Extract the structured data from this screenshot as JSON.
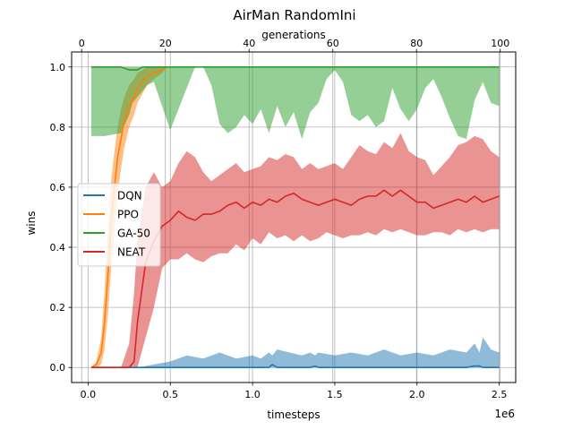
{
  "chart_data": {
    "type": "line",
    "title": "AirMan RandomIni",
    "xlabel": "timesteps",
    "x_scale_label": "1e6",
    "ylabel": "wins",
    "top_xlabel": "generations",
    "xlim": [
      -0.1,
      2.6
    ],
    "ylim": [
      -0.05,
      1.05
    ],
    "top_xlim": [
      -2.4,
      103.7
    ],
    "x_ticks": [
      0.0,
      0.5,
      1.0,
      1.5,
      2.0,
      2.5
    ],
    "x_tick_labels": [
      "0.0",
      "0.5",
      "1.0",
      "1.5",
      "2.0",
      "2.5"
    ],
    "y_ticks": [
      0.0,
      0.2,
      0.4,
      0.6,
      0.8,
      1.0
    ],
    "y_tick_labels": [
      "0.0",
      "0.2",
      "0.4",
      "0.6",
      "0.8",
      "1.0"
    ],
    "top_ticks": [
      0,
      20,
      40,
      60,
      80,
      100
    ],
    "top_tick_labels": [
      "0",
      "20",
      "40",
      "60",
      "80",
      "100"
    ],
    "grid": true,
    "legend_position": "center-left",
    "series": [
      {
        "name": "DQN",
        "color": "#1f77b4",
        "x": [
          0.02,
          0.3,
          0.4,
          0.5,
          0.6,
          0.7,
          0.8,
          0.9,
          1.0,
          1.05,
          1.1,
          1.12,
          1.15,
          1.3,
          1.35,
          1.38,
          1.4,
          1.5,
          1.6,
          1.7,
          1.8,
          1.9,
          2.0,
          2.1,
          2.2,
          2.3,
          2.35,
          2.38,
          2.4,
          2.45,
          2.5
        ],
        "y": [
          0,
          0,
          0,
          0,
          0,
          0,
          0,
          0,
          0,
          0,
          0,
          0.01,
          0,
          0,
          0,
          0.005,
          0,
          0,
          0,
          0,
          0,
          0,
          0,
          0,
          0,
          0,
          0.005,
          0.005,
          0,
          0,
          0
        ],
        "upper": [
          0,
          0,
          0.01,
          0.02,
          0.04,
          0.03,
          0.05,
          0.03,
          0.04,
          0.03,
          0.05,
          0.04,
          0.06,
          0.04,
          0.05,
          0.04,
          0.05,
          0.04,
          0.05,
          0.04,
          0.06,
          0.04,
          0.05,
          0.04,
          0.06,
          0.05,
          0.08,
          0.05,
          0.1,
          0.06,
          0.05
        ],
        "lower": [
          0,
          0,
          0,
          0,
          0,
          0,
          0,
          0,
          0,
          0,
          0,
          0,
          0,
          0,
          0,
          0,
          0,
          0,
          0,
          0,
          0,
          0,
          0,
          0,
          0,
          0,
          0,
          0,
          0,
          0,
          0
        ]
      },
      {
        "name": "PPO",
        "color": "#ff7f0e",
        "x": [
          0.02,
          0.05,
          0.08,
          0.1,
          0.12,
          0.14,
          0.16,
          0.18,
          0.2,
          0.22,
          0.25,
          0.28,
          0.3,
          0.33,
          0.36,
          0.4,
          0.45,
          0.48
        ],
        "y": [
          0,
          0.01,
          0.05,
          0.15,
          0.3,
          0.48,
          0.6,
          0.7,
          0.76,
          0.82,
          0.87,
          0.9,
          0.93,
          0.95,
          0.97,
          0.98,
          0.99,
          1.0
        ],
        "upper": [
          0,
          0.02,
          0.1,
          0.25,
          0.45,
          0.62,
          0.72,
          0.8,
          0.86,
          0.9,
          0.94,
          0.96,
          0.98,
          0.99,
          1.0,
          1.0,
          1.0,
          1.0
        ],
        "lower": [
          0,
          0,
          0.01,
          0.06,
          0.17,
          0.33,
          0.45,
          0.58,
          0.66,
          0.73,
          0.8,
          0.84,
          0.88,
          0.91,
          0.94,
          0.96,
          0.98,
          1.0
        ],
        "tail_x": [
          2.48,
          2.5
        ],
        "tail_y": [
          1.0,
          1.0
        ]
      },
      {
        "name": "GA-50",
        "color": "#2ca02c",
        "x": [
          0.02,
          0.1,
          0.2,
          0.25,
          0.27,
          0.3,
          0.33,
          0.36,
          0.4,
          0.45,
          0.5,
          0.55,
          0.6,
          0.65,
          0.7,
          0.75,
          0.8,
          0.85,
          0.9,
          0.95,
          1.0,
          1.05,
          1.1,
          1.15,
          1.2,
          1.25,
          1.3,
          1.35,
          1.4,
          1.45,
          1.5,
          1.55,
          1.6,
          1.65,
          1.7,
          1.75,
          1.8,
          1.85,
          1.9,
          1.95,
          2.0,
          2.05,
          2.1,
          2.15,
          2.2,
          2.25,
          2.3,
          2.35,
          2.4,
          2.45,
          2.5
        ],
        "y": [
          1.0,
          1.0,
          1.0,
          0.99,
          0.99,
          0.99,
          1.0,
          1.0,
          1.0,
          1.0,
          1.0,
          1.0,
          1.0,
          1.0,
          1.0,
          1.0,
          1.0,
          1.0,
          1.0,
          1.0,
          1.0,
          1.0,
          1.0,
          1.0,
          1.0,
          1.0,
          1.0,
          1.0,
          1.0,
          1.0,
          1.0,
          1.0,
          1.0,
          1.0,
          1.0,
          1.0,
          1.0,
          1.0,
          1.0,
          1.0,
          1.0,
          1.0,
          1.0,
          1.0,
          1.0,
          1.0,
          1.0,
          1.0,
          1.0,
          1.0,
          1.0
        ],
        "upper": [
          1.0,
          1.0,
          1.0,
          1.0,
          1.0,
          1.0,
          1.0,
          1.0,
          1.0,
          1.0,
          1.0,
          1.0,
          1.0,
          1.0,
          1.0,
          1.0,
          1.0,
          1.0,
          1.0,
          1.0,
          1.0,
          1.0,
          1.0,
          1.0,
          1.0,
          1.0,
          1.0,
          1.0,
          1.0,
          1.0,
          1.0,
          1.0,
          1.0,
          1.0,
          1.0,
          1.0,
          1.0,
          1.0,
          1.0,
          1.0,
          1.0,
          1.0,
          1.0,
          1.0,
          1.0,
          1.0,
          1.0,
          1.0,
          1.0,
          1.0,
          1.0
        ],
        "lower": [
          0.77,
          0.77,
          0.78,
          0.84,
          0.88,
          0.9,
          0.92,
          0.94,
          0.95,
          0.87,
          0.79,
          0.86,
          0.93,
          1.0,
          1.0,
          0.94,
          0.81,
          0.78,
          0.8,
          0.84,
          0.81,
          0.86,
          0.78,
          0.87,
          0.8,
          0.85,
          0.76,
          0.85,
          0.88,
          0.96,
          0.99,
          0.95,
          0.84,
          0.82,
          0.84,
          0.8,
          0.82,
          0.93,
          0.86,
          0.82,
          0.86,
          0.93,
          0.96,
          0.9,
          0.83,
          0.77,
          0.76,
          0.89,
          0.95,
          0.88,
          0.87
        ]
      },
      {
        "name": "NEAT",
        "color": "#d62728",
        "x": [
          0.02,
          0.1,
          0.2,
          0.25,
          0.28,
          0.3,
          0.35,
          0.4,
          0.45,
          0.5,
          0.55,
          0.6,
          0.65,
          0.7,
          0.75,
          0.8,
          0.85,
          0.9,
          0.95,
          1.0,
          1.05,
          1.1,
          1.15,
          1.2,
          1.25,
          1.3,
          1.35,
          1.4,
          1.45,
          1.5,
          1.55,
          1.6,
          1.65,
          1.7,
          1.75,
          1.8,
          1.85,
          1.9,
          1.95,
          2.0,
          2.05,
          2.1,
          2.15,
          2.2,
          2.25,
          2.3,
          2.35,
          2.4,
          2.45,
          2.5
        ],
        "y": [
          0,
          0,
          0,
          0,
          0.02,
          0.15,
          0.35,
          0.42,
          0.47,
          0.49,
          0.52,
          0.5,
          0.49,
          0.51,
          0.51,
          0.52,
          0.54,
          0.55,
          0.53,
          0.55,
          0.54,
          0.56,
          0.55,
          0.57,
          0.58,
          0.56,
          0.55,
          0.54,
          0.55,
          0.56,
          0.55,
          0.54,
          0.56,
          0.57,
          0.57,
          0.59,
          0.57,
          0.59,
          0.57,
          0.55,
          0.55,
          0.53,
          0.54,
          0.55,
          0.56,
          0.55,
          0.57,
          0.55,
          0.56,
          0.57
        ],
        "upper": [
          0,
          0,
          0,
          0.08,
          0.25,
          0.42,
          0.6,
          0.65,
          0.6,
          0.62,
          0.68,
          0.72,
          0.7,
          0.65,
          0.62,
          0.64,
          0.66,
          0.68,
          0.65,
          0.66,
          0.67,
          0.7,
          0.69,
          0.71,
          0.7,
          0.66,
          0.68,
          0.66,
          0.67,
          0.68,
          0.66,
          0.7,
          0.74,
          0.72,
          0.71,
          0.75,
          0.73,
          0.78,
          0.72,
          0.7,
          0.69,
          0.64,
          0.67,
          0.7,
          0.74,
          0.75,
          0.77,
          0.76,
          0.72,
          0.7
        ],
        "lower": [
          0,
          0,
          0,
          0,
          0,
          0,
          0.1,
          0.2,
          0.33,
          0.36,
          0.36,
          0.38,
          0.36,
          0.35,
          0.37,
          0.38,
          0.38,
          0.41,
          0.39,
          0.43,
          0.41,
          0.45,
          0.43,
          0.44,
          0.42,
          0.44,
          0.42,
          0.43,
          0.45,
          0.44,
          0.43,
          0.44,
          0.44,
          0.45,
          0.44,
          0.46,
          0.45,
          0.46,
          0.45,
          0.44,
          0.44,
          0.45,
          0.45,
          0.44,
          0.46,
          0.45,
          0.46,
          0.45,
          0.46,
          0.46
        ]
      }
    ]
  }
}
